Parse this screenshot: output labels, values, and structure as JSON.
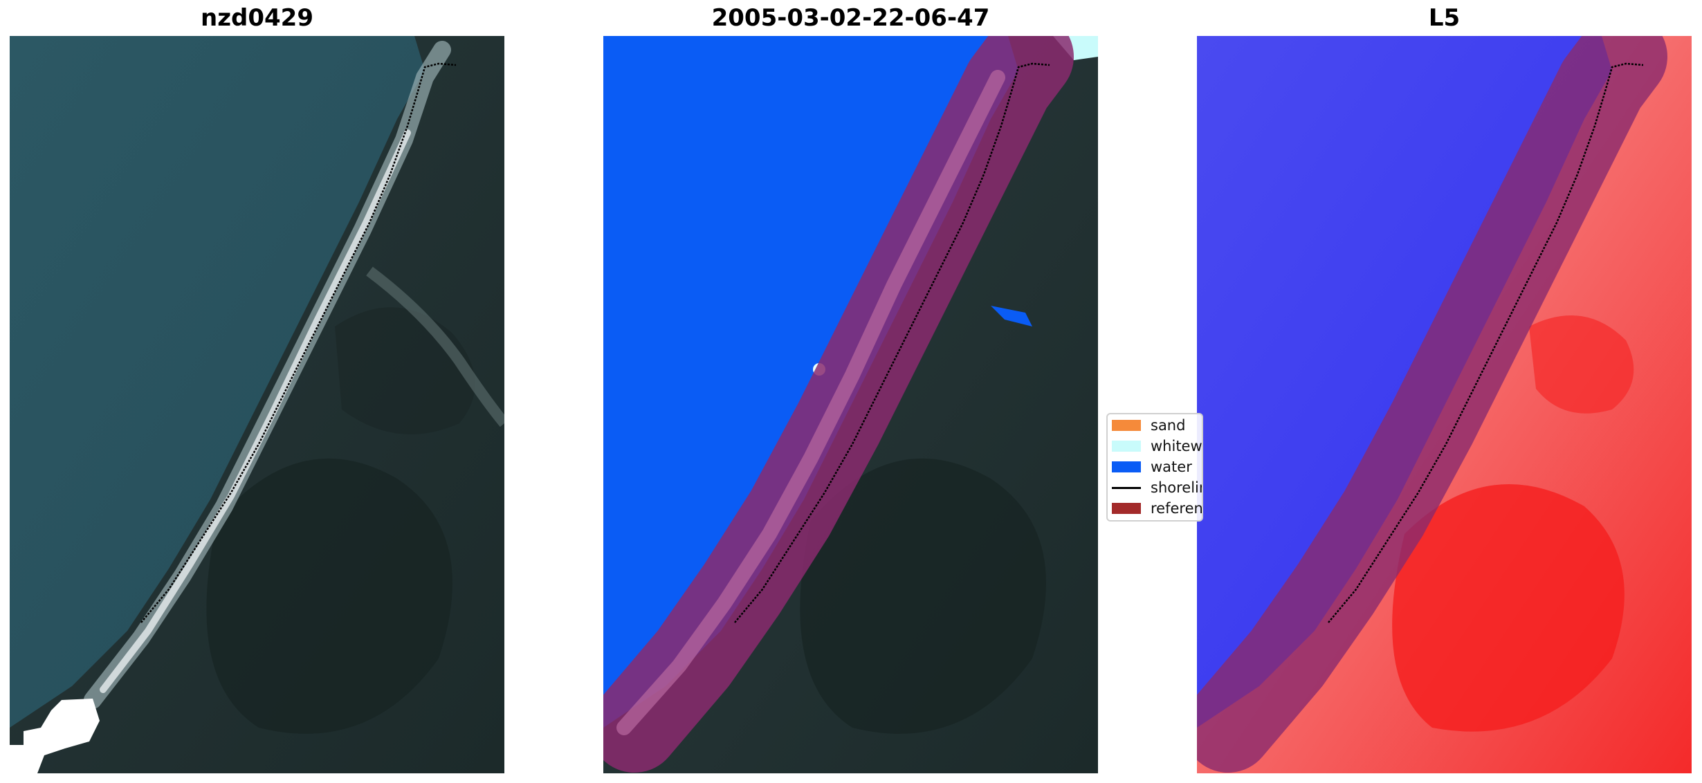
{
  "panels": [
    {
      "title": "nzd0429"
    },
    {
      "title": "2005-03-02-22-06-47"
    },
    {
      "title": "L5"
    }
  ],
  "legend": {
    "items": [
      {
        "label": "sand",
        "color": "#f58a3a"
      },
      {
        "label": "whitewater",
        "color": "#c9fbfb"
      },
      {
        "label": "water",
        "color": "#0a5cf5"
      },
      {
        "label": "shoreline",
        "color": "#000000"
      },
      {
        "label": "reference shoreline buffer",
        "color": "#a32a2a"
      }
    ]
  },
  "colors": {
    "sea": "#2a5663",
    "land": "#1f2d2c",
    "water_class": "#0a5cf5",
    "buffer": "#8a2a6e",
    "index_blue": "#3b3bf2",
    "index_red": "#f52f2f"
  }
}
